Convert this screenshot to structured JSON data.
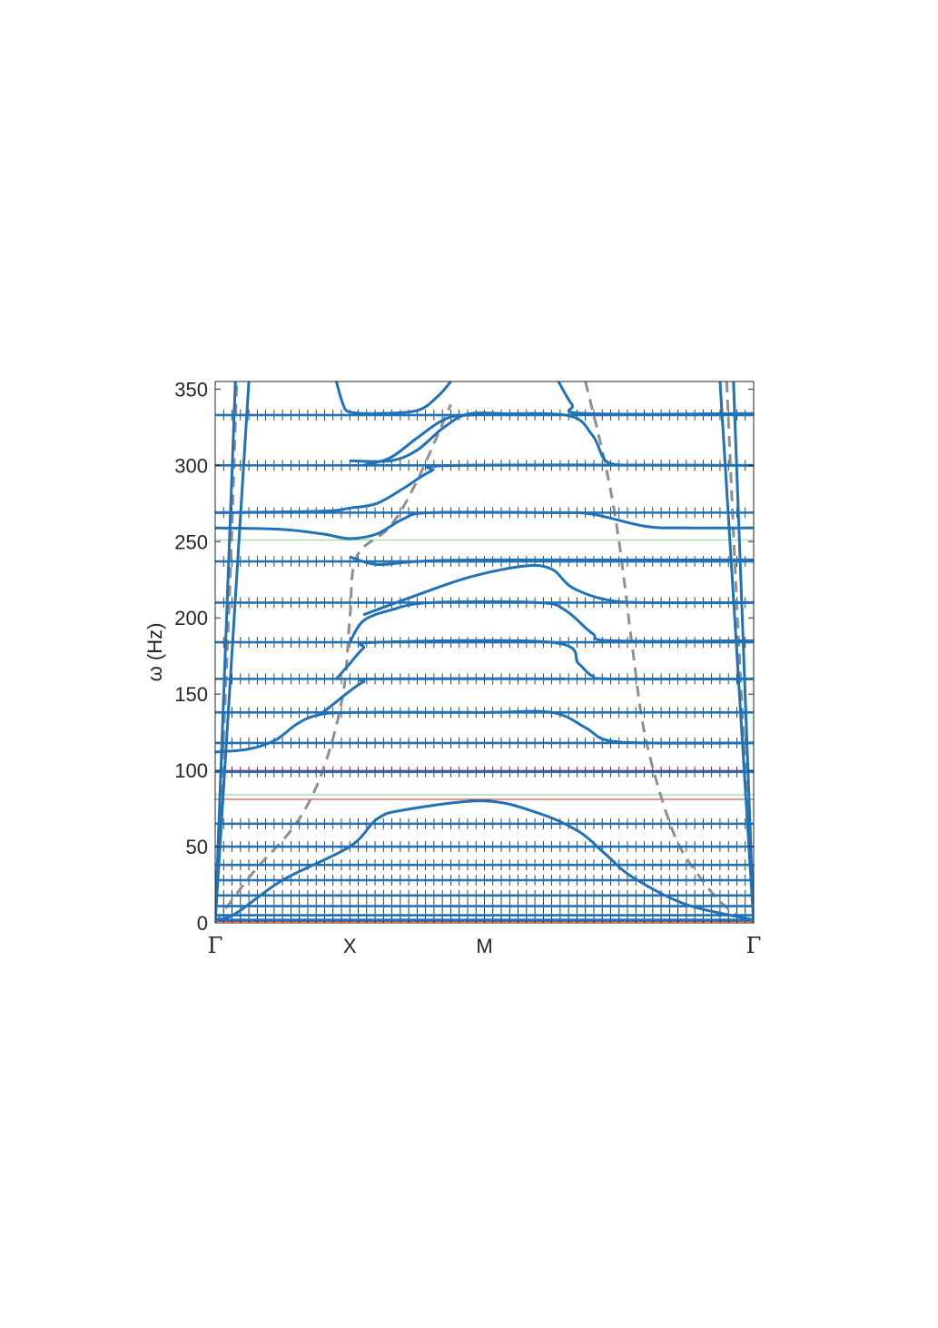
{
  "chart_data": {
    "type": "line",
    "ylabel": "ω (Hz)",
    "ylim": [
      0,
      355
    ],
    "x_tick_labels": [
      "Γ",
      "X",
      "M",
      "Γ"
    ],
    "y_ticks": [
      0,
      50,
      100,
      150,
      200,
      250,
      300,
      350
    ],
    "grid": false,
    "colors": {
      "band": "#1f72b8",
      "dashed": "#8f8f8f",
      "flat_red": "#d62728",
      "flat_green": "#7fd87f",
      "marker": "#111111",
      "axis": "#262626"
    },
    "flat_red_levels": [
      1,
      5,
      11,
      18,
      28,
      38,
      50,
      65,
      81,
      100,
      118,
      138,
      160,
      184,
      210,
      237,
      269,
      300,
      333
    ],
    "flat_green_levels": [
      84,
      251
    ],
    "flat_bands": [
      2,
      5,
      11,
      18,
      28,
      38,
      50,
      65,
      99,
      118,
      138,
      160,
      184,
      210,
      237,
      269,
      300,
      333
    ],
    "dispersive_bands": [
      {
        "points": [
          [
            0,
            2
          ],
          [
            0.15,
            6
          ],
          [
            0.5,
            28
          ],
          [
            1,
            50
          ],
          [
            1.2,
            68
          ],
          [
            1.4,
            74
          ],
          [
            2,
            80
          ],
          [
            2.4,
            72
          ],
          [
            2.7,
            60
          ],
          [
            2.9,
            45
          ],
          [
            3.1,
            30
          ],
          [
            3.5,
            12
          ],
          [
            4,
            2
          ]
        ]
      },
      {
        "points": [
          [
            0,
            112
          ],
          [
            0.25,
            114
          ],
          [
            0.45,
            120
          ],
          [
            0.6,
            130
          ],
          [
            0.75,
            136
          ],
          [
            1,
            138
          ],
          [
            2,
            138
          ],
          [
            2.5,
            138
          ],
          [
            2.75,
            128
          ],
          [
            2.9,
            120
          ],
          [
            3.2,
            118
          ],
          [
            4,
            118
          ]
        ]
      },
      {
        "points": [
          [
            0.8,
            138
          ],
          [
            0.9,
            145
          ],
          [
            1,
            152
          ],
          [
            1.1,
            158
          ],
          [
            1.2,
            160
          ],
          [
            2.6,
            160
          ]
        ]
      },
      {
        "points": [
          [
            0.9,
            160
          ],
          [
            1,
            170
          ],
          [
            1.1,
            180
          ],
          [
            1.2,
            184
          ],
          [
            2.5,
            184
          ],
          [
            2.7,
            170
          ],
          [
            2.8,
            162
          ],
          [
            2.95,
            160
          ],
          [
            4,
            160
          ]
        ]
      },
      {
        "points": [
          [
            1,
            184
          ],
          [
            1.1,
            198
          ],
          [
            1.3,
            205
          ],
          [
            1.6,
            210
          ],
          [
            2.4,
            210
          ],
          [
            2.6,
            205
          ],
          [
            2.8,
            190
          ],
          [
            2.95,
            185
          ],
          [
            4,
            185
          ]
        ]
      },
      {
        "points": [
          [
            1.1,
            202
          ],
          [
            1.5,
            215
          ],
          [
            1.9,
            227
          ],
          [
            2.3,
            234
          ],
          [
            2.5,
            232
          ],
          [
            2.65,
            220
          ],
          [
            2.9,
            212
          ],
          [
            3.2,
            210
          ],
          [
            4,
            210
          ]
        ]
      },
      {
        "points": [
          [
            1,
            240
          ],
          [
            1.2,
            235
          ],
          [
            1.5,
            237
          ],
          [
            2,
            238
          ],
          [
            4,
            238
          ]
        ]
      },
      {
        "points": [
          [
            0,
            259
          ],
          [
            0.5,
            258
          ],
          [
            0.8,
            255
          ],
          [
            1,
            252
          ],
          [
            1.2,
            255
          ],
          [
            1.4,
            265
          ],
          [
            1.6,
            269
          ],
          [
            2.5,
            269
          ],
          [
            2.8,
            268
          ],
          [
            3.2,
            260
          ],
          [
            3.5,
            259
          ],
          [
            4,
            259
          ]
        ]
      },
      {
        "points": [
          [
            0,
            269
          ],
          [
            0.8,
            270
          ],
          [
            1,
            272
          ],
          [
            1.2,
            275
          ],
          [
            1.4,
            285
          ],
          [
            1.6,
            296
          ],
          [
            1.8,
            300
          ],
          [
            4,
            300
          ]
        ]
      },
      {
        "points": [
          [
            1.1,
            300
          ],
          [
            1.3,
            305
          ],
          [
            1.5,
            318
          ],
          [
            1.7,
            330
          ],
          [
            1.9,
            333
          ],
          [
            2.6,
            333
          ],
          [
            2.8,
            320
          ],
          [
            2.9,
            303
          ],
          [
            3.05,
            300
          ]
        ]
      },
      {
        "points": [
          [
            1,
            303
          ],
          [
            1.3,
            303
          ],
          [
            1.5,
            310
          ],
          [
            1.7,
            325
          ],
          [
            1.9,
            334
          ],
          [
            2.3,
            333
          ]
        ]
      },
      {
        "points": [
          [
            0.9,
            355
          ],
          [
            0.95,
            340
          ],
          [
            1,
            335
          ],
          [
            1.2,
            334
          ],
          [
            1.5,
            336
          ],
          [
            1.65,
            345
          ],
          [
            1.75,
            355
          ]
        ]
      },
      {
        "points": [
          [
            2.55,
            355
          ],
          [
            2.65,
            340
          ],
          [
            2.75,
            334
          ],
          [
            4,
            334
          ]
        ]
      }
    ],
    "dashed_lines": [
      {
        "points": [
          [
            0,
            0
          ],
          [
            0.1,
            12
          ],
          [
            0.3,
            35
          ],
          [
            0.6,
            65
          ],
          [
            0.8,
            100
          ],
          [
            0.95,
            150
          ],
          [
            1,
            200
          ],
          [
            1.05,
            240
          ],
          [
            1.3,
            260
          ],
          [
            1.5,
            290
          ],
          [
            1.75,
            340
          ]
        ]
      },
      {
        "points": [
          [
            2.75,
            355
          ],
          [
            2.9,
            300
          ],
          [
            3.0,
            250
          ],
          [
            3.1,
            180
          ],
          [
            3.2,
            120
          ],
          [
            3.4,
            60
          ],
          [
            3.6,
            30
          ],
          [
            3.8,
            10
          ],
          [
            4,
            0
          ]
        ]
      },
      {
        "points": [
          [
            0,
            0
          ],
          [
            0.1,
            200
          ],
          [
            0.16,
            355
          ]
        ]
      },
      {
        "points": [
          [
            3.8,
            355
          ],
          [
            3.88,
            200
          ],
          [
            4,
            0
          ]
        ]
      }
    ],
    "linear_bands": [
      {
        "points": [
          [
            0,
            0
          ],
          [
            0.15,
            355
          ]
        ]
      },
      {
        "points": [
          [
            0,
            0
          ],
          [
            0.25,
            355
          ]
        ]
      },
      {
        "points": [
          [
            3.75,
            355
          ],
          [
            4,
            0
          ]
        ]
      },
      {
        "points": [
          [
            3.85,
            355
          ],
          [
            4,
            0
          ]
        ]
      }
    ]
  }
}
